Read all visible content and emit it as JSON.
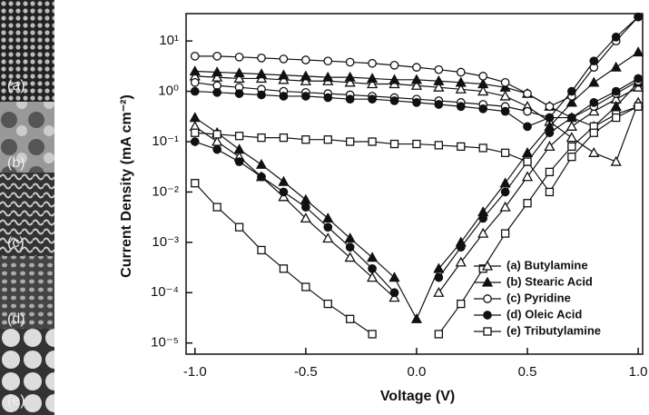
{
  "chart_data": {
    "type": "line",
    "x_label": "Voltage (V)",
    "y_label": "Current Density (mA cm⁻²)",
    "log_y": true,
    "color": "#111111",
    "legend_position": "lower right",
    "x": [
      -1.0,
      -0.9,
      -0.8,
      -0.7,
      -0.6,
      -0.5,
      -0.4,
      -0.3,
      -0.2,
      -0.1,
      0.0,
      0.1,
      0.2,
      0.3,
      0.4,
      0.5,
      0.6,
      0.7,
      0.8,
      0.9,
      1.0
    ],
    "xlim": [
      -1.04,
      1.02
    ],
    "xticks": [
      {
        "value": -1.0,
        "label": "-1.0"
      },
      -0.5,
      {
        "value": 0.0,
        "label": "0.0"
      },
      0.5,
      {
        "value": 1.0,
        "label": "1.0"
      }
    ],
    "ylim": [
      6e-06,
      35
    ],
    "yticks": [
      {
        "value": 1e-05,
        "label": "10⁻⁵"
      },
      {
        "value": 0.0001,
        "label": "10⁻⁴"
      },
      {
        "value": 0.001,
        "label": "10⁻³"
      },
      {
        "value": 0.01,
        "label": "10⁻²"
      },
      {
        "value": 0.1,
        "label": "10⁻¹"
      },
      {
        "value": 1,
        "label": "10⁰"
      },
      {
        "value": 10,
        "label": "10¹"
      }
    ],
    "series": [
      {
        "name": "(a) Butylamine",
        "marker": "triangle",
        "filled": false,
        "light": [
          2.0,
          1.9,
          1.8,
          1.8,
          1.7,
          1.6,
          1.6,
          1.5,
          1.4,
          1.4,
          1.3,
          1.2,
          1.1,
          1.0,
          0.8,
          0.5,
          0.25,
          0.12,
          0.06,
          0.04,
          0.6
        ],
        "dark": [
          0.2,
          0.1,
          0.05,
          0.02,
          0.008,
          0.003,
          0.0012,
          0.0005,
          0.0002,
          8e-05,
          null,
          0.0001,
          0.0004,
          0.0015,
          0.005,
          0.02,
          0.08,
          0.2,
          0.4,
          0.7,
          1.2
        ]
      },
      {
        "name": "(b) Stearic Acid",
        "marker": "triangle",
        "filled": true,
        "light": [
          2.5,
          2.4,
          2.3,
          2.2,
          2.1,
          2.0,
          1.9,
          1.9,
          1.8,
          1.7,
          1.7,
          1.6,
          1.5,
          1.4,
          1.2,
          0.9,
          0.5,
          0.3,
          0.2,
          0.5,
          1.5
        ],
        "dark": [
          0.3,
          0.15,
          0.07,
          0.035,
          0.016,
          0.007,
          0.003,
          0.0012,
          0.0005,
          0.0002,
          3e-05,
          0.0003,
          0.001,
          0.004,
          0.015,
          0.06,
          0.2,
          0.6,
          1.5,
          3,
          6
        ]
      },
      {
        "name": "(c) Pyridine",
        "marker": "circle",
        "filled": false,
        "light": [
          5,
          5,
          4.8,
          4.6,
          4.4,
          4.2,
          4.0,
          3.8,
          3.6,
          3.3,
          3.0,
          2.7,
          2.4,
          2.0,
          1.5,
          0.9,
          0.5,
          0.8,
          3,
          10,
          30
        ],
        "dark": [
          1.5,
          1.3,
          1.2,
          1.1,
          1.0,
          0.95,
          0.9,
          0.85,
          0.8,
          0.75,
          0.7,
          0.65,
          0.6,
          0.55,
          0.5,
          0.4,
          0.3,
          0.3,
          0.5,
          0.9,
          1.6
        ]
      },
      {
        "name": "(d) Oleic Acid",
        "marker": "circle",
        "filled": true,
        "light": [
          1.0,
          0.95,
          0.9,
          0.85,
          0.8,
          0.8,
          0.75,
          0.7,
          0.7,
          0.65,
          0.6,
          0.55,
          0.5,
          0.45,
          0.4,
          0.2,
          0.3,
          1,
          4,
          12,
          30
        ],
        "dark": [
          0.1,
          0.07,
          0.04,
          0.02,
          0.01,
          0.005,
          0.002,
          0.0008,
          0.0003,
          0.0001,
          null,
          0.0002,
          0.0008,
          0.003,
          0.01,
          0.04,
          0.15,
          0.3,
          0.6,
          1,
          1.8
        ]
      },
      {
        "name": "(e) Tributylamine",
        "marker": "square",
        "filled": false,
        "light": [
          0.15,
          0.14,
          0.13,
          0.12,
          0.12,
          0.11,
          0.11,
          0.1,
          0.1,
          0.09,
          0.09,
          0.085,
          0.08,
          0.075,
          0.06,
          0.04,
          0.01,
          0.05,
          0.15,
          0.3,
          0.5
        ],
        "dark": [
          0.015,
          0.005,
          0.002,
          0.0007,
          0.0003,
          0.00013,
          6e-05,
          3e-05,
          1.5e-05,
          null,
          null,
          1.5e-05,
          6e-05,
          0.0003,
          0.0015,
          0.006,
          0.025,
          0.08,
          0.2,
          0.35,
          0.5
        ]
      }
    ]
  },
  "panels": [
    "(a)",
    "(b)",
    "(c)",
    "(d)",
    "(e)"
  ]
}
